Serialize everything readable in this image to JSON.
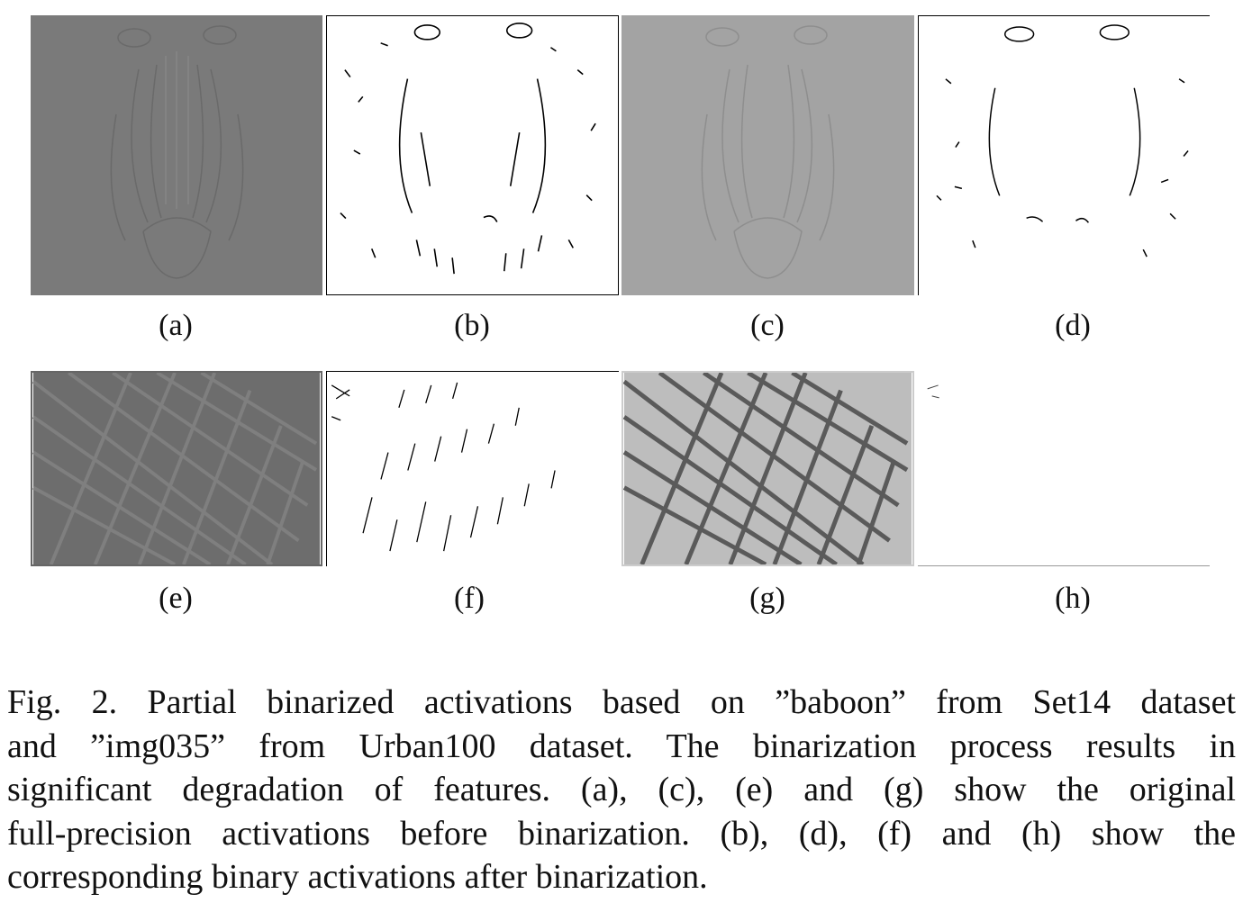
{
  "figure": {
    "subfigures": [
      {
        "label": "(a)",
        "content": "baboon full-precision activation"
      },
      {
        "label": "(b)",
        "content": "baboon binary activation"
      },
      {
        "label": "(c)",
        "content": "baboon full-precision activation"
      },
      {
        "label": "(d)",
        "content": "baboon binary activation"
      },
      {
        "label": "(e)",
        "content": "building full-precision activation"
      },
      {
        "label": "(f)",
        "content": "building binary activation"
      },
      {
        "label": "(g)",
        "content": "building full-precision activation"
      },
      {
        "label": "(h)",
        "content": "building binary activation"
      }
    ],
    "caption_lines": [
      "Fig. 2.  Partial binarized activations based on ”baboon” from Set14 dataset",
      "and ”img035” from Urban100 dataset. The binarization process results in",
      "significant degradation of features. (a), (c), (e) and (g) show the original",
      "full-precision activations before binarization. (b), (d), (f) and (h) show the",
      "corresponding binary activations after binarization."
    ]
  }
}
